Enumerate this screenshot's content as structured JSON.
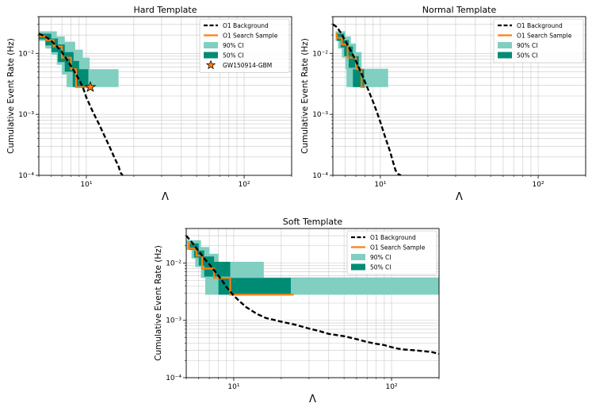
{
  "figure": {
    "type": "multi-panel log-log chart"
  },
  "colors": {
    "background": "#000000",
    "search": "#ff7f0e",
    "ci90": "#80cfc0",
    "ci50": "#008b74",
    "grid": "#c8c8c8",
    "star": "#ff7f0e"
  },
  "chart_data": [
    {
      "type": "line",
      "title": "Hard Template",
      "xlabel": "Λ",
      "ylabel": "Cumulative Event Rate (Hz)",
      "xscale": "log",
      "yscale": "log",
      "xlim": [
        5,
        200
      ],
      "ylim": [
        0.0001,
        0.04
      ],
      "xticks": [
        {
          "v": 10,
          "label": "10¹"
        },
        {
          "v": 100,
          "label": "10²"
        }
      ],
      "yticks": [
        {
          "v": 0.0001,
          "label": "10⁻⁴"
        },
        {
          "v": 0.001,
          "label": "10⁻³"
        },
        {
          "v": 0.01,
          "label": "10⁻²"
        }
      ],
      "legend": {
        "position": "top-right",
        "entries": [
          {
            "label": "O1 Background",
            "kind": "dashed"
          },
          {
            "label": "O1 Search Sample",
            "kind": "line"
          },
          {
            "label": "90% CI",
            "kind": "ci90"
          },
          {
            "label": "50% CI",
            "kind": "ci50"
          },
          {
            "label": "GW150914-GBM",
            "kind": "star"
          }
        ]
      },
      "background": {
        "x": [
          5,
          5.5,
          6,
          6.5,
          7,
          7.5,
          8,
          8.5,
          9,
          9.5,
          10,
          11,
          12,
          13,
          14,
          15,
          16,
          16.5,
          17
        ],
        "y": [
          0.021,
          0.019,
          0.016,
          0.013,
          0.0105,
          0.008,
          0.0062,
          0.0048,
          0.0037,
          0.0028,
          0.0019,
          0.0011,
          0.0007,
          0.00045,
          0.0003,
          0.0002,
          0.00014,
          0.00011,
          0.0001
        ]
      },
      "search": {
        "x": [
          5,
          5.6,
          5.6,
          6.2,
          6.2,
          7.0,
          7.0,
          8.0,
          8.0,
          8.6,
          8.6,
          10.5
        ],
        "y": [
          0.019,
          0.019,
          0.0165,
          0.0165,
          0.013,
          0.013,
          0.0085,
          0.0085,
          0.0055,
          0.0055,
          0.0028,
          0.0028
        ]
      },
      "ci90": [
        {
          "x0": 5.0,
          "x1": 6.5,
          "y0": 0.016,
          "y1": 0.023
        },
        {
          "x0": 5.5,
          "x1": 7.3,
          "y0": 0.012,
          "y1": 0.019
        },
        {
          "x0": 6.0,
          "x1": 8.5,
          "y0": 0.0095,
          "y1": 0.0155
        },
        {
          "x0": 6.5,
          "x1": 9.5,
          "y0": 0.0065,
          "y1": 0.0115
        },
        {
          "x0": 7.0,
          "x1": 10.5,
          "y0": 0.0045,
          "y1": 0.0085
        },
        {
          "x0": 7.5,
          "x1": 16.0,
          "y0": 0.0028,
          "y1": 0.0055
        }
      ],
      "ci50": [
        {
          "x0": 5.0,
          "x1": 6.0,
          "y0": 0.017,
          "y1": 0.021
        },
        {
          "x0": 5.5,
          "x1": 6.6,
          "y0": 0.0135,
          "y1": 0.0175
        },
        {
          "x0": 6.0,
          "x1": 7.3,
          "y0": 0.0105,
          "y1": 0.014
        },
        {
          "x0": 6.6,
          "x1": 8.3,
          "y0": 0.0072,
          "y1": 0.0105
        },
        {
          "x0": 7.3,
          "x1": 9.0,
          "y0": 0.005,
          "y1": 0.0075
        },
        {
          "x0": 8.2,
          "x1": 10.3,
          "y0": 0.0028,
          "y1": 0.0055
        }
      ],
      "star": {
        "x": 10.6,
        "y": 0.0028
      }
    },
    {
      "type": "line",
      "title": "Normal Template",
      "xlabel": "Λ",
      "ylabel": "Cumulative Event Rate (Hz)",
      "xscale": "log",
      "yscale": "log",
      "xlim": [
        5,
        200
      ],
      "ylim": [
        0.0001,
        0.04
      ],
      "xticks": [
        {
          "v": 10,
          "label": "10¹"
        },
        {
          "v": 100,
          "label": "10²"
        }
      ],
      "yticks": [
        {
          "v": 0.0001,
          "label": "10⁻⁴"
        },
        {
          "v": 0.001,
          "label": "10⁻³"
        },
        {
          "v": 0.01,
          "label": "10⁻²"
        }
      ],
      "legend": {
        "position": "top-right",
        "entries": [
          {
            "label": "O1 Background",
            "kind": "dashed"
          },
          {
            "label": "O1 Search Sample",
            "kind": "line"
          },
          {
            "label": "90% CI",
            "kind": "ci90"
          },
          {
            "label": "50% CI",
            "kind": "ci50"
          }
        ]
      },
      "background": {
        "x": [
          5,
          5.3,
          5.6,
          6,
          6.5,
          7,
          7.5,
          8,
          8.5,
          9,
          9.5,
          10,
          10.5,
          11,
          11.5,
          12,
          12.5,
          13,
          13.5
        ],
        "y": [
          0.03,
          0.027,
          0.022,
          0.016,
          0.011,
          0.0075,
          0.005,
          0.0034,
          0.0023,
          0.0016,
          0.0011,
          0.00075,
          0.0005,
          0.00035,
          0.00025,
          0.00017,
          0.00012,
          0.000105,
          0.0001
        ]
      },
      "search": {
        "x": [
          5.3,
          5.3,
          5.7,
          5.7,
          6.2,
          6.2,
          7.0,
          7.0,
          7.6,
          7.6,
          8.0
        ],
        "y": [
          0.022,
          0.018,
          0.018,
          0.014,
          0.014,
          0.0085,
          0.0085,
          0.0055,
          0.0055,
          0.0028,
          0.0028
        ]
      },
      "ci90": [
        {
          "x0": 5.2,
          "x1": 6.0,
          "y0": 0.016,
          "y1": 0.023
        },
        {
          "x0": 5.4,
          "x1": 6.5,
          "y0": 0.012,
          "y1": 0.019
        },
        {
          "x0": 5.7,
          "x1": 7.0,
          "y0": 0.0085,
          "y1": 0.0145
        },
        {
          "x0": 6.0,
          "x1": 7.6,
          "y0": 0.0055,
          "y1": 0.0105
        },
        {
          "x0": 6.1,
          "x1": 11.2,
          "y0": 0.0028,
          "y1": 0.0056
        }
      ],
      "ci50": [
        {
          "x0": 5.3,
          "x1": 5.9,
          "y0": 0.016,
          "y1": 0.021
        },
        {
          "x0": 5.6,
          "x1": 6.3,
          "y0": 0.0125,
          "y1": 0.0165
        },
        {
          "x0": 5.9,
          "x1": 6.7,
          "y0": 0.009,
          "y1": 0.013
        },
        {
          "x0": 6.3,
          "x1": 7.3,
          "y0": 0.0058,
          "y1": 0.009
        },
        {
          "x0": 6.7,
          "x1": 7.9,
          "y0": 0.0028,
          "y1": 0.0055
        }
      ]
    },
    {
      "type": "line",
      "title": "Soft Template",
      "xlabel": "Λ",
      "ylabel": "Cumulative Event Rate (Hz)",
      "xscale": "log",
      "yscale": "log",
      "xlim": [
        5,
        200
      ],
      "ylim": [
        0.0001,
        0.04
      ],
      "xticks": [
        {
          "v": 10,
          "label": "10¹"
        },
        {
          "v": 100,
          "label": "10²"
        }
      ],
      "yticks": [
        {
          "v": 0.0001,
          "label": "10⁻⁴"
        },
        {
          "v": 0.001,
          "label": "10⁻³"
        },
        {
          "v": 0.01,
          "label": "10⁻²"
        }
      ],
      "legend": {
        "position": "top-right",
        "entries": [
          {
            "label": "O1 Background",
            "kind": "dashed"
          },
          {
            "label": "O1 Search Sample",
            "kind": "line"
          },
          {
            "label": "90% CI",
            "kind": "ci90"
          },
          {
            "label": "50% CI",
            "kind": "ci50"
          }
        ]
      },
      "background": {
        "x": [
          5,
          5.5,
          6,
          6.5,
          7,
          7.5,
          8,
          8.5,
          9,
          10,
          11,
          12,
          14,
          16,
          20,
          25,
          30,
          35,
          40,
          50,
          60,
          70,
          80,
          90,
          100,
          110,
          120,
          140,
          160,
          180,
          200
        ],
        "y": [
          0.03,
          0.022,
          0.016,
          0.012,
          0.0095,
          0.0075,
          0.006,
          0.0048,
          0.0038,
          0.0027,
          0.0021,
          0.0017,
          0.0013,
          0.0011,
          0.00095,
          0.00083,
          0.00072,
          0.00065,
          0.00058,
          0.00053,
          0.00047,
          0.00042,
          0.00039,
          0.00037,
          0.00034,
          0.00032,
          0.00031,
          0.0003,
          0.00029,
          0.00028,
          0.00026
        ]
      },
      "search": {
        "x": [
          5.2,
          5.2,
          5.8,
          5.8,
          6.3,
          6.3,
          7.5,
          7.5,
          9.5,
          9.5,
          24
        ],
        "y": [
          0.024,
          0.018,
          0.018,
          0.0135,
          0.0135,
          0.008,
          0.008,
          0.0055,
          0.0055,
          0.0028,
          0.0028
        ]
      },
      "ci90": [
        {
          "x0": 5.0,
          "x1": 6.2,
          "y0": 0.017,
          "y1": 0.025
        },
        {
          "x0": 5.4,
          "x1": 7.0,
          "y0": 0.012,
          "y1": 0.019
        },
        {
          "x0": 5.7,
          "x1": 8.0,
          "y0": 0.0085,
          "y1": 0.0145
        },
        {
          "x0": 6.2,
          "x1": 15.5,
          "y0": 0.0055,
          "y1": 0.0105
        },
        {
          "x0": 6.6,
          "x1": 200,
          "y0": 0.0028,
          "y1": 0.0056
        }
      ],
      "ci50": [
        {
          "x0": 5.2,
          "x1": 6.0,
          "y0": 0.017,
          "y1": 0.022
        },
        {
          "x0": 5.6,
          "x1": 6.5,
          "y0": 0.0125,
          "y1": 0.0165
        },
        {
          "x0": 6.0,
          "x1": 7.5,
          "y0": 0.009,
          "y1": 0.013
        },
        {
          "x0": 6.5,
          "x1": 9.5,
          "y0": 0.0058,
          "y1": 0.0105
        },
        {
          "x0": 8.0,
          "x1": 23,
          "y0": 0.0028,
          "y1": 0.0055
        }
      ]
    }
  ]
}
